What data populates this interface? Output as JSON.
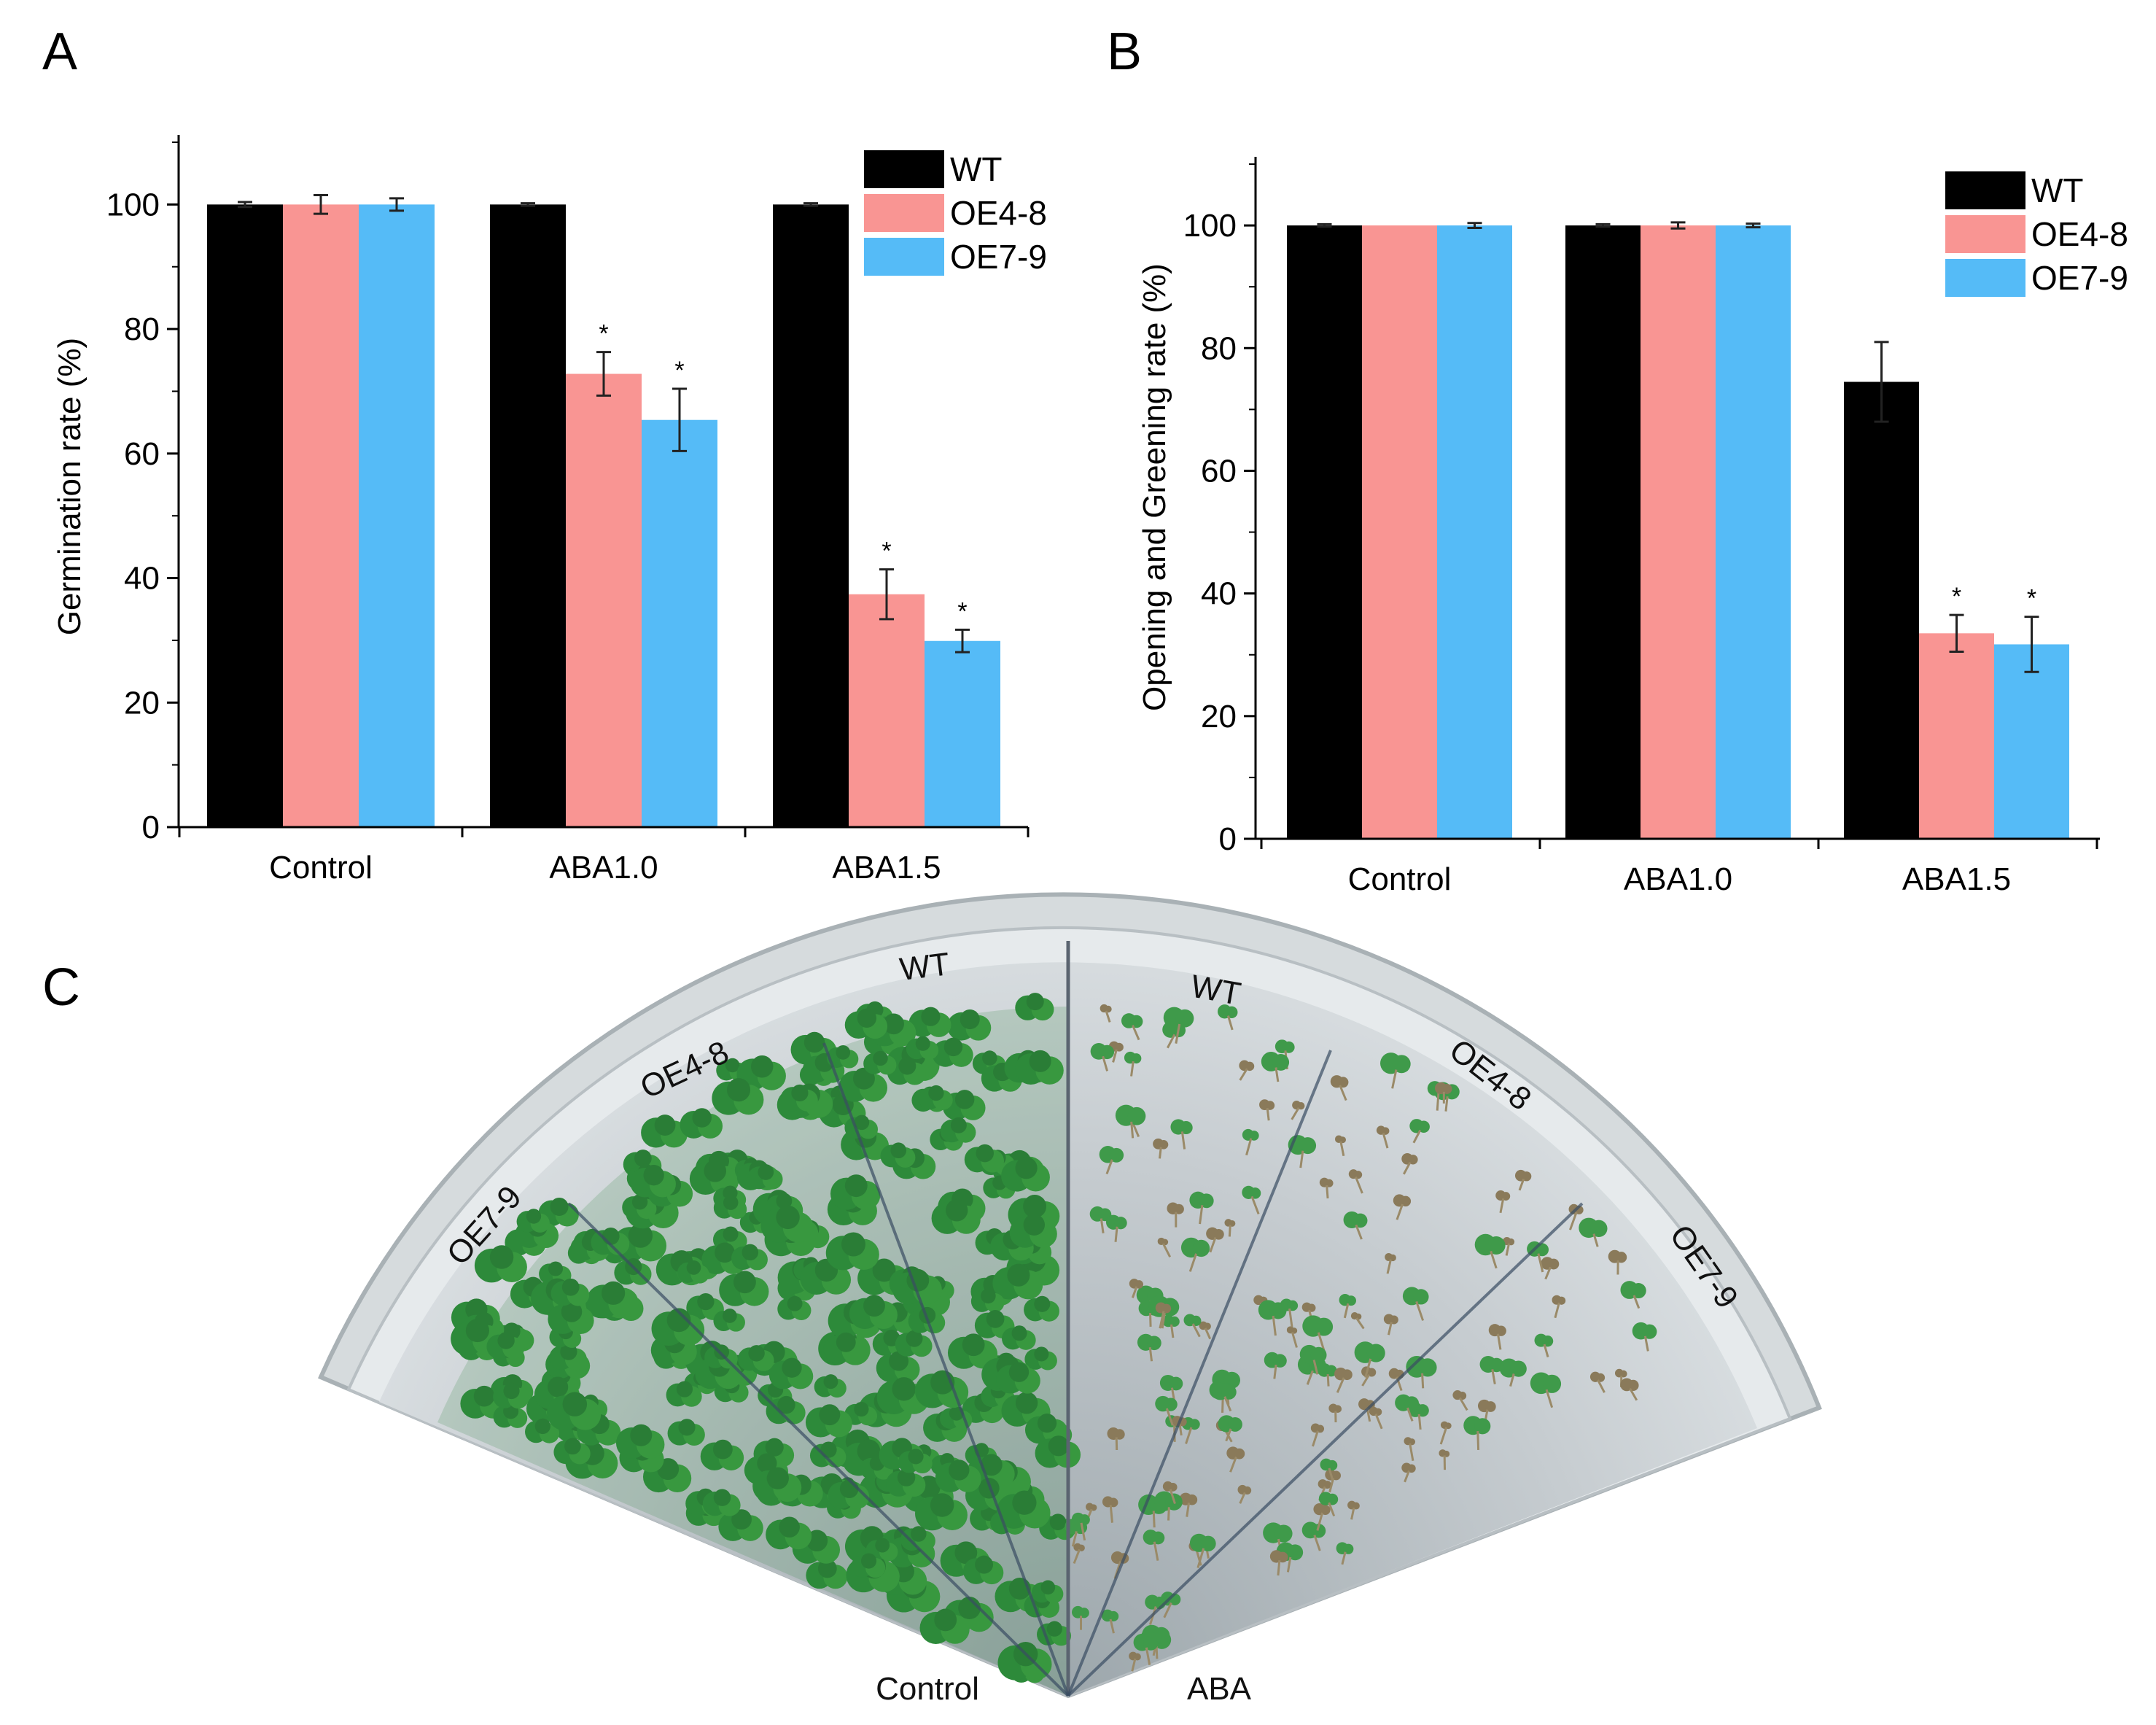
{
  "panels": {
    "a": "A",
    "b": "B",
    "c": "C"
  },
  "colors": {
    "WT": "#000000",
    "OE4-8": "#f99593",
    "OE7-9": "#55bbf7"
  },
  "chart_data": [
    {
      "type": "bar",
      "panel": "A",
      "title": "",
      "xlabel": "",
      "ylabel": "Germination rate (%)",
      "ylim": [
        0,
        110
      ],
      "yticks": [
        0,
        20,
        40,
        60,
        80,
        100
      ],
      "categories": [
        "Control",
        "ABA1.0",
        "ABA1.5"
      ],
      "legend_position": "top-right",
      "series": [
        {
          "name": "WT",
          "values": [
            100,
            100,
            100
          ],
          "errors": [
            0.4,
            0.2,
            0.2
          ],
          "sig": [
            "",
            "",
            ""
          ]
        },
        {
          "name": "OE4-8",
          "values": [
            100,
            72.8,
            37.4
          ],
          "errors": [
            1.5,
            3.5,
            4.0
          ],
          "sig": [
            "",
            "*",
            "*"
          ]
        },
        {
          "name": "OE7-9",
          "values": [
            100,
            65.4,
            29.9
          ],
          "errors": [
            1.0,
            5.0,
            1.8
          ],
          "sig": [
            "",
            "*",
            "*"
          ]
        }
      ]
    },
    {
      "type": "bar",
      "panel": "B",
      "title": "",
      "xlabel": "",
      "ylabel": "Opening and Greening rate (%)",
      "ylim": [
        0,
        110
      ],
      "yticks": [
        0,
        20,
        40,
        60,
        80,
        100
      ],
      "categories": [
        "Control",
        "ABA1.0",
        "ABA1.5"
      ],
      "legend_position": "top-right",
      "series": [
        {
          "name": "WT",
          "values": [
            100,
            100,
            74.5
          ],
          "errors": [
            0.2,
            0.2,
            6.5
          ],
          "sig": [
            "",
            "",
            ""
          ]
        },
        {
          "name": "OE4-8",
          "values": [
            100,
            100,
            33.5
          ],
          "errors": [
            0.0,
            0.5,
            3.0
          ],
          "sig": [
            "",
            "",
            "*"
          ]
        },
        {
          "name": "OE7-9",
          "values": [
            100,
            100,
            31.7
          ],
          "errors": [
            0.4,
            0.3,
            4.5
          ],
          "sig": [
            "",
            "",
            "*"
          ]
        }
      ]
    }
  ],
  "photo": {
    "plate_labels": [
      "WT",
      "OE4-8",
      "OE7-9",
      "WT",
      "OE4-8",
      "OE7-9"
    ],
    "left_caption": "Control",
    "right_caption": "ABA"
  }
}
